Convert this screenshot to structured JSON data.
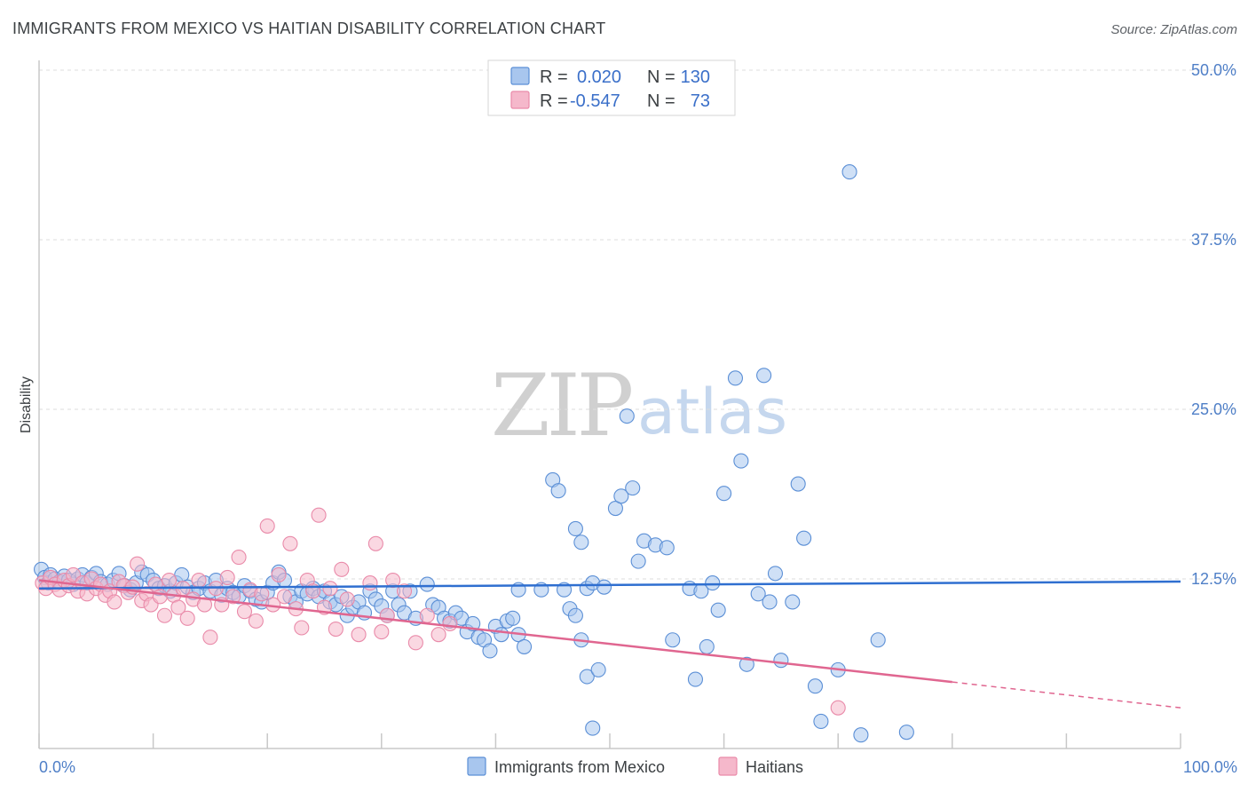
{
  "title": "IMMIGRANTS FROM MEXICO VS HAITIAN DISABILITY CORRELATION CHART",
  "source": "Source: ZipAtlas.com",
  "watermark": {
    "zip": "ZIP",
    "atlas": "atlas"
  },
  "colors": {
    "blue_fill": "#a8c6ee",
    "blue_stroke": "#5b8fd6",
    "blue_line": "#2f6fd0",
    "pink_fill": "#f5b8cb",
    "pink_stroke": "#e98aa9",
    "pink_line": "#e06690",
    "tick_text": "#4f7fc7"
  },
  "legend": {
    "row1": {
      "r_label": "R =",
      "r_value": "0.020",
      "n_label": "N =",
      "n_value": "130"
    },
    "row2": {
      "r_label": "R =",
      "r_value": "-0.547",
      "n_label": "N =",
      "n_value": "73"
    }
  },
  "chart_data": {
    "type": "scatter",
    "title": "IMMIGRANTS FROM MEXICO VS HAITIAN DISABILITY CORRELATION CHART",
    "xlabel": "",
    "ylabel": "Disability",
    "xlim": [
      0,
      100
    ],
    "ylim": [
      0,
      50
    ],
    "x_tick_labels": [
      "0.0%",
      "100.0%"
    ],
    "y_ticks": [
      12.5,
      25.0,
      37.5,
      50.0
    ],
    "y_tick_labels": [
      "12.5%",
      "25.0%",
      "37.5%",
      "50.0%"
    ],
    "series": [
      {
        "name": "Immigrants from Mexico",
        "color": "#a8c6ee",
        "R": 0.02,
        "N": 130,
        "trend": {
          "x0": 0,
          "y0": 11.8,
          "x1": 100,
          "y1": 12.3
        },
        "points": [
          [
            0.2,
            13.2
          ],
          [
            0.5,
            12.6
          ],
          [
            0.8,
            12.2
          ],
          [
            1,
            12.8
          ],
          [
            1.4,
            12.5
          ],
          [
            1.8,
            12.3
          ],
          [
            2.2,
            12.7
          ],
          [
            2.6,
            12.4
          ],
          [
            3,
            12.1
          ],
          [
            3.4,
            12.5
          ],
          [
            3.8,
            12.8
          ],
          [
            4.2,
            12.2
          ],
          [
            4.6,
            12.6
          ],
          [
            5,
            12.9
          ],
          [
            5.4,
            12.3
          ],
          [
            6,
            12.1
          ],
          [
            6.5,
            12.4
          ],
          [
            7,
            12.9
          ],
          [
            7.5,
            12
          ],
          [
            8,
            11.7
          ],
          [
            8.5,
            12.2
          ],
          [
            9,
            13
          ],
          [
            9.5,
            12.8
          ],
          [
            10,
            12.4
          ],
          [
            10.5,
            11.8
          ],
          [
            11,
            12
          ],
          [
            11.5,
            11.6
          ],
          [
            12,
            12.2
          ],
          [
            12.5,
            12.8
          ],
          [
            13,
            11.9
          ],
          [
            13.5,
            11.5
          ],
          [
            14,
            11.8
          ],
          [
            14.5,
            12.2
          ],
          [
            15,
            11.6
          ],
          [
            15.5,
            12.4
          ],
          [
            16,
            11.3
          ],
          [
            16.5,
            11.8
          ],
          [
            17,
            11.5
          ],
          [
            17.5,
            11.2
          ],
          [
            18,
            12
          ],
          [
            18.5,
            11.6
          ],
          [
            19,
            11
          ],
          [
            19.5,
            10.8
          ],
          [
            20,
            11.5
          ],
          [
            20.5,
            12.2
          ],
          [
            21,
            13
          ],
          [
            21.5,
            12.4
          ],
          [
            22,
            11.2
          ],
          [
            22.5,
            10.8
          ],
          [
            23,
            11.6
          ],
          [
            23.5,
            11.4
          ],
          [
            24,
            11.8
          ],
          [
            24.5,
            11.2
          ],
          [
            25,
            11.6
          ],
          [
            25.5,
            10.8
          ],
          [
            26,
            10.6
          ],
          [
            26.5,
            11.2
          ],
          [
            27,
            9.8
          ],
          [
            27.5,
            10.4
          ],
          [
            28,
            10.8
          ],
          [
            28.5,
            10
          ],
          [
            29,
            11.6
          ],
          [
            29.5,
            11
          ],
          [
            30,
            10.5
          ],
          [
            30.5,
            9.8
          ],
          [
            31,
            11.6
          ],
          [
            31.5,
            10.6
          ],
          [
            32,
            10
          ],
          [
            32.5,
            11.6
          ],
          [
            33,
            9.6
          ],
          [
            34,
            12.1
          ],
          [
            34.5,
            10.6
          ],
          [
            35,
            10.4
          ],
          [
            35.5,
            9.6
          ],
          [
            36,
            9.4
          ],
          [
            36.5,
            10
          ],
          [
            37,
            9.6
          ],
          [
            37.5,
            8.6
          ],
          [
            38,
            9.2
          ],
          [
            38.5,
            8.2
          ],
          [
            39,
            8
          ],
          [
            39.5,
            7.2
          ],
          [
            40,
            9
          ],
          [
            40.5,
            8.4
          ],
          [
            41,
            9.4
          ],
          [
            41.5,
            9.6
          ],
          [
            42,
            8.4
          ],
          [
            42.5,
            7.5
          ],
          [
            42,
            11.7
          ],
          [
            44,
            11.7
          ],
          [
            45,
            19.8
          ],
          [
            45.5,
            19
          ],
          [
            46,
            11.7
          ],
          [
            46.5,
            10.3
          ],
          [
            47,
            9.8
          ],
          [
            47.5,
            15.2
          ],
          [
            47.5,
            8
          ],
          [
            48,
            11.8
          ],
          [
            48.5,
            12.2
          ],
          [
            49.5,
            11.9
          ],
          [
            47,
            16.2
          ],
          [
            48,
            5.3
          ],
          [
            48.5,
            1.5
          ],
          [
            49,
            5.8
          ],
          [
            50.5,
            17.7
          ],
          [
            51,
            18.6
          ],
          [
            51.5,
            24.5
          ],
          [
            52,
            19.2
          ],
          [
            52.5,
            13.8
          ],
          [
            53,
            15.3
          ],
          [
            54,
            15
          ],
          [
            55,
            14.8
          ],
          [
            55.5,
            8
          ],
          [
            57,
            11.8
          ],
          [
            57.5,
            5.1
          ],
          [
            58,
            11.6
          ],
          [
            58.5,
            7.5
          ],
          [
            59,
            12.2
          ],
          [
            59.5,
            10.2
          ],
          [
            60,
            18.8
          ],
          [
            61,
            27.3
          ],
          [
            61.5,
            21.2
          ],
          [
            62,
            6.2
          ],
          [
            63,
            11.4
          ],
          [
            63.5,
            27.5
          ],
          [
            64,
            10.8
          ],
          [
            64.5,
            12.9
          ],
          [
            65,
            6.5
          ],
          [
            66,
            10.8
          ],
          [
            66.5,
            19.5
          ],
          [
            67,
            15.5
          ],
          [
            68,
            4.6
          ],
          [
            68.5,
            2
          ],
          [
            70,
            5.8
          ],
          [
            71,
            42.5
          ],
          [
            72,
            1
          ],
          [
            73.5,
            8
          ],
          [
            76,
            1.2
          ]
        ]
      },
      {
        "name": "Haitians",
        "color": "#f5b8cb",
        "R": -0.547,
        "N": 73,
        "trend": {
          "x0": 0,
          "y0": 12.4,
          "x1": 80,
          "y1": 4.9,
          "dashed_to": {
            "x": 100,
            "y": 3.0
          }
        },
        "points": [
          [
            0.3,
            12.2
          ],
          [
            0.6,
            11.8
          ],
          [
            1,
            12.6
          ],
          [
            1.4,
            12.1
          ],
          [
            1.8,
            11.7
          ],
          [
            2.2,
            12.4
          ],
          [
            2.6,
            12
          ],
          [
            3,
            12.8
          ],
          [
            3.4,
            11.6
          ],
          [
            3.8,
            12.2
          ],
          [
            4.2,
            11.4
          ],
          [
            4.6,
            12.5
          ],
          [
            5,
            11.8
          ],
          [
            5.4,
            12.1
          ],
          [
            5.8,
            11.3
          ],
          [
            6.2,
            11.6
          ],
          [
            6.6,
            10.8
          ],
          [
            7,
            12.3
          ],
          [
            7.4,
            12
          ],
          [
            7.8,
            11.5
          ],
          [
            8.2,
            11.9
          ],
          [
            8.6,
            13.6
          ],
          [
            9,
            10.9
          ],
          [
            9.4,
            11.4
          ],
          [
            9.8,
            10.6
          ],
          [
            10.2,
            12.1
          ],
          [
            10.6,
            11.2
          ],
          [
            11,
            9.8
          ],
          [
            11.4,
            12.4
          ],
          [
            11.8,
            11.3
          ],
          [
            12.2,
            10.4
          ],
          [
            12.6,
            11.8
          ],
          [
            13,
            9.6
          ],
          [
            13.5,
            11
          ],
          [
            14,
            12.4
          ],
          [
            14.5,
            10.6
          ],
          [
            15,
            8.2
          ],
          [
            15.5,
            11.8
          ],
          [
            16,
            10.6
          ],
          [
            16.5,
            12.6
          ],
          [
            17,
            11.2
          ],
          [
            17.5,
            14.1
          ],
          [
            18,
            10.1
          ],
          [
            18.5,
            11.7
          ],
          [
            19,
            9.4
          ],
          [
            19.5,
            11.4
          ],
          [
            20,
            16.4
          ],
          [
            20.5,
            10.6
          ],
          [
            21,
            12.8
          ],
          [
            21.5,
            11.2
          ],
          [
            22,
            15.1
          ],
          [
            22.5,
            10.3
          ],
          [
            23,
            8.9
          ],
          [
            23.5,
            12.4
          ],
          [
            24,
            11.6
          ],
          [
            24.5,
            17.2
          ],
          [
            25,
            10.4
          ],
          [
            25.5,
            11.8
          ],
          [
            26,
            8.8
          ],
          [
            26.5,
            13.2
          ],
          [
            27,
            11
          ],
          [
            28,
            8.4
          ],
          [
            29,
            12.2
          ],
          [
            29.5,
            15.1
          ],
          [
            30,
            8.6
          ],
          [
            30.5,
            9.8
          ],
          [
            31,
            12.4
          ],
          [
            32,
            11.6
          ],
          [
            33,
            7.8
          ],
          [
            34,
            9.8
          ],
          [
            35,
            8.4
          ],
          [
            36,
            9.2
          ],
          [
            70,
            3
          ]
        ]
      }
    ]
  },
  "bottom_legend": {
    "item1": "Immigrants from Mexico",
    "item2": "Haitians"
  }
}
